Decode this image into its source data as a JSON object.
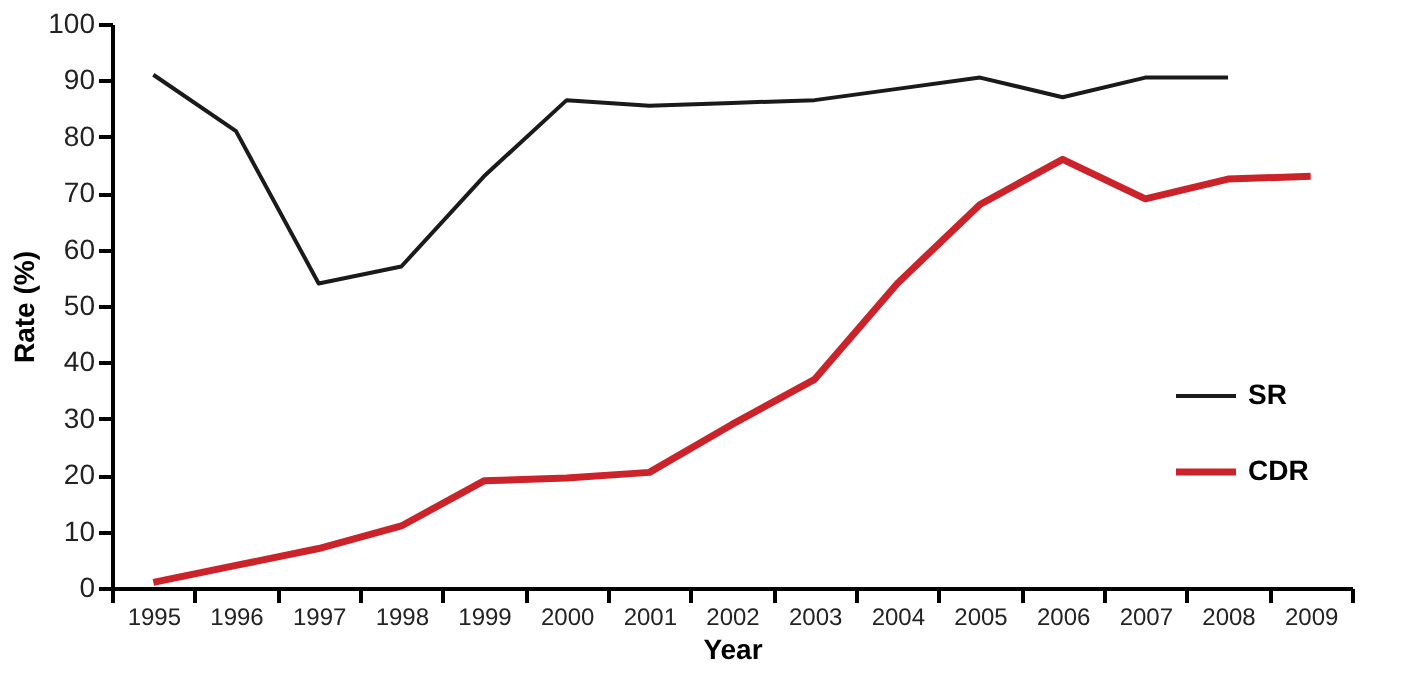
{
  "chart_data": {
    "type": "line",
    "xlabel": "Year",
    "ylabel": "Rate (%)",
    "categories": [
      "1995",
      "1996",
      "1997",
      "1998",
      "1999",
      "2000",
      "2001",
      "2002",
      "2003",
      "2004",
      "2005",
      "2006",
      "2007",
      "2008",
      "2009"
    ],
    "series": [
      {
        "name": "SR",
        "color": "#1a1a1a",
        "values": [
          91,
          81,
          54,
          57,
          73,
          86.5,
          85.5,
          86,
          86.5,
          88.5,
          90.5,
          87,
          90.5,
          90.5,
          null
        ]
      },
      {
        "name": "CDR",
        "color": "#cc2229",
        "values": [
          1,
          4,
          7,
          11,
          19,
          19.5,
          20.5,
          29,
          37,
          54,
          68,
          76,
          69,
          72.5,
          73
        ]
      }
    ],
    "ylim": [
      0,
      100
    ],
    "yticks": [
      0,
      10,
      20,
      30,
      40,
      50,
      60,
      70,
      80,
      90,
      100
    ],
    "grid": false,
    "legend": "right",
    "marker": "none",
    "line_style": "solid"
  }
}
